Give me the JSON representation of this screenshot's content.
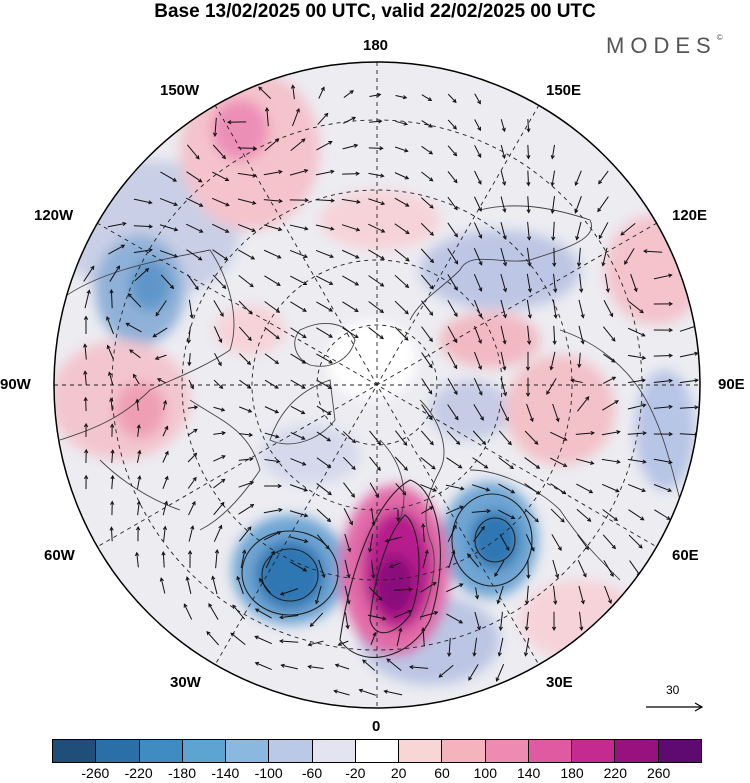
{
  "title": "Base 13/02/2025 00 UTC, valid 22/02/2025 00 UTC",
  "brand": "MODES",
  "brand_mark": "©",
  "longitude_labels": {
    "lon_180": "180",
    "lon_150E": "150E",
    "lon_120E": "120E",
    "lon_90E": "90E",
    "lon_60E": "60E",
    "lon_30E": "30E",
    "lon_0": "0",
    "lon_30W": "30W",
    "lon_60W": "60W",
    "lon_90W": "90W",
    "lon_120W": "120W",
    "lon_150W": "150W"
  },
  "reference_vector": {
    "label": "30",
    "magnitude": 30
  },
  "colorbar": {
    "tick_labels": [
      "-260",
      "-220",
      "-180",
      "-140",
      "-100",
      "-60",
      "-20",
      "20",
      "60",
      "100",
      "140",
      "180",
      "220",
      "260"
    ],
    "colors": [
      "#1f4e79",
      "#2a6fa8",
      "#3f8cc2",
      "#5ea4d2",
      "#8bb8de",
      "#b9c9e6",
      "#e3e3f1",
      "#ffffff",
      "#f9d6d6",
      "#f4b3bd",
      "#ee8bb0",
      "#e05aa2",
      "#c52a90",
      "#98127f",
      "#5e0a70"
    ]
  },
  "colors": {
    "negative_anomaly": "#3f8cc2",
    "positive_anomaly": "#c52a90",
    "neutral": "#e8e8ee"
  }
}
